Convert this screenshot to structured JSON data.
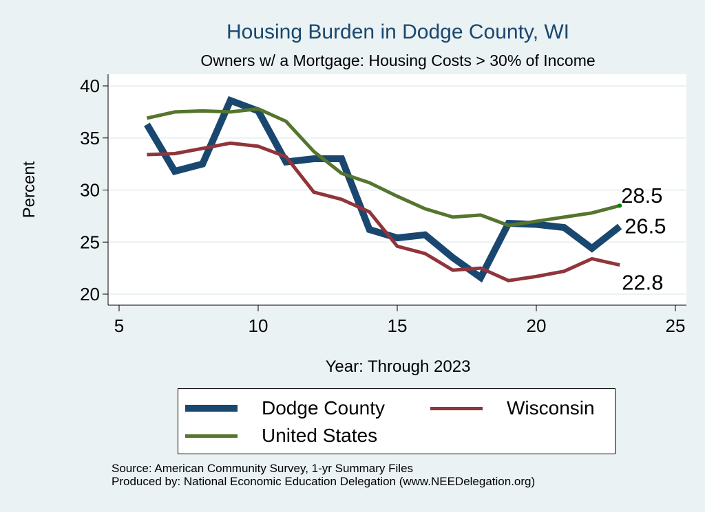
{
  "chart_data": {
    "type": "line",
    "title": "Housing Burden in Dodge County, WI",
    "subtitle": "Owners w/ a Mortgage: Housing Costs > 30% of Income",
    "xlabel": "Year: Through 2023",
    "ylabel": "Percent",
    "xlim": [
      5,
      25
    ],
    "ylim": [
      20,
      40
    ],
    "xticks": [
      5,
      10,
      15,
      20,
      25
    ],
    "yticks": [
      20,
      25,
      30,
      35,
      40
    ],
    "grid": true,
    "legend_position": "bottom",
    "x": [
      6,
      7,
      8,
      9,
      10,
      11,
      12,
      13,
      14,
      15,
      16,
      17,
      18,
      19,
      20,
      21,
      22,
      23
    ],
    "series": [
      {
        "name": "Dodge County",
        "color": "#1a476f",
        "weight": "thick",
        "values": [
          36.3,
          31.8,
          32.5,
          38.6,
          37.6,
          32.7,
          33.0,
          33.0,
          26.2,
          25.4,
          25.7,
          23.5,
          21.6,
          26.8,
          26.7,
          26.4,
          24.4,
          26.5
        ],
        "end_label": "26.5"
      },
      {
        "name": "Wisconsin",
        "color": "#90353b",
        "weight": "medium",
        "values": [
          33.4,
          33.5,
          34.0,
          34.5,
          34.2,
          33.2,
          29.8,
          29.1,
          27.9,
          24.6,
          23.9,
          22.3,
          22.5,
          21.3,
          21.7,
          22.2,
          23.4,
          22.8
        ],
        "end_label": "22.8"
      },
      {
        "name": "United States",
        "color": "#55752f",
        "weight": "medium",
        "values": [
          36.9,
          37.5,
          37.6,
          37.5,
          37.8,
          36.6,
          33.7,
          31.6,
          30.7,
          29.4,
          28.2,
          27.4,
          27.6,
          26.6,
          27.0,
          27.4,
          27.8,
          28.5
        ],
        "end_label": "28.5"
      }
    ]
  },
  "source_lines": [
    "Source: American Community Survey, 1-yr Summary Files",
    "Produced by: National Economic Education Delegation (www.NEEDelegation.org)"
  ]
}
